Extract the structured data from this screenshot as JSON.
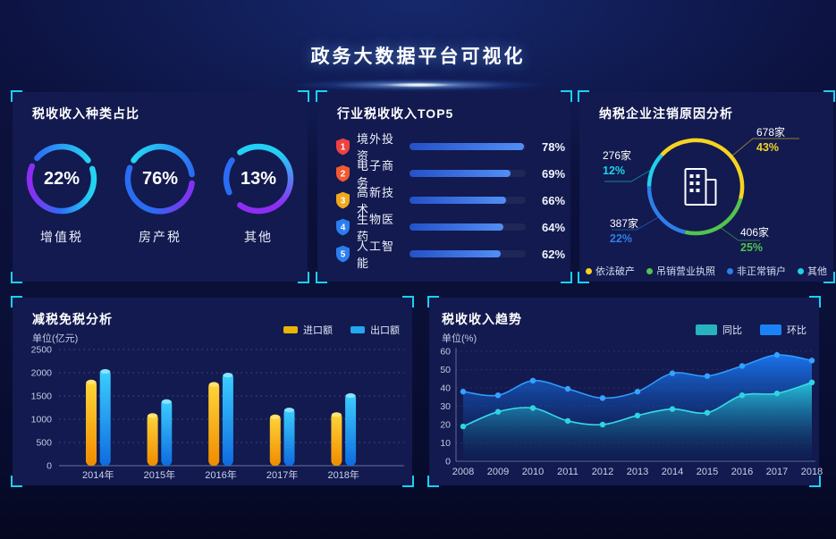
{
  "header": {
    "title": "政务大数据平台可视化"
  },
  "panels": {
    "tax_type": {
      "title": "税收收入种类占比"
    },
    "industry_top5": {
      "title": "行业税收收入TOP5"
    },
    "cancellation": {
      "title": "纳税企业注销原因分析"
    },
    "tax_reduction": {
      "title": "减税免税分析",
      "unit": "单位(亿元)"
    },
    "tax_trend": {
      "title": "税收收入趋势",
      "unit": "单位(%)"
    }
  },
  "colors": {
    "panel_background": "#121a4f",
    "corner_bracket": "#1bd1f2",
    "top5_bar": [
      "#2451c8",
      "#528ef5"
    ]
  },
  "chart_data": [
    {
      "id": "tax_type_rings",
      "type": "pie",
      "title": "税收收入种类占比",
      "items": [
        {
          "label": "增值税",
          "percent": 22,
          "gradient": [
            "#8d2df2",
            "#2e6cf6",
            "#24d3f2"
          ]
        },
        {
          "label": "房产税",
          "percent": 76,
          "gradient": [
            "#8033f2",
            "#2a6cf2",
            "#25d5f3"
          ]
        },
        {
          "label": "其他",
          "percent": 13,
          "gradient": [
            "#8d2df2",
            "#2a6cf5",
            "#22d0f5"
          ]
        }
      ]
    },
    {
      "id": "industry_top5",
      "type": "bar",
      "title": "行业税收收入TOP5",
      "unit": "%",
      "max": 78,
      "rows": [
        {
          "rank": "1",
          "label": "境外投资",
          "value": 78,
          "percent": "78%",
          "badge_color": "#f04141"
        },
        {
          "rank": "2",
          "label": "电子商务",
          "value": 69,
          "percent": "69%",
          "badge_color": "#f2592e"
        },
        {
          "rank": "3",
          "label": "高新技术",
          "value": 66,
          "percent": "66%",
          "badge_color": "#f0a81d"
        },
        {
          "rank": "4",
          "label": "生物医药",
          "value": 64,
          "percent": "64%",
          "badge_color": "#2b7df0"
        },
        {
          "rank": "5",
          "label": "人工智能",
          "value": 62,
          "percent": "62%",
          "badge_color": "#2b7df0"
        }
      ]
    },
    {
      "id": "cancellation_donut",
      "type": "pie",
      "title": "纳税企业注销原因分析",
      "center_icon": "building-icon",
      "slices": [
        {
          "label": "依法破产",
          "count": "678家",
          "percent": "43%",
          "value": 43,
          "color": "#f6d321"
        },
        {
          "label": "吊销营业执照",
          "count": "406家",
          "percent": "25%",
          "value": 25,
          "color": "#53c24e"
        },
        {
          "label": "非正常销户",
          "count": "387家",
          "percent": "22%",
          "value": 22,
          "color": "#2f7ee8"
        },
        {
          "label": "其他",
          "count": "276家",
          "percent": "12%",
          "value": 12,
          "color": "#1fd0e8"
        }
      ],
      "legend_order": [
        "依法破产",
        "吊销营业执照",
        "非正常销户",
        "其他"
      ]
    },
    {
      "id": "tax_reduction_bars",
      "type": "bar",
      "title": "减税免税分析",
      "ylabel": "单位(亿元)",
      "categories": [
        "2014年",
        "2015年",
        "2016年",
        "2017年",
        "2018年"
      ],
      "series": [
        {
          "name": "进口额",
          "values": [
            1850,
            1130,
            1800,
            1100,
            1150
          ],
          "colors": [
            "#ffd63a",
            "#f08c00"
          ],
          "cap": "#ffe47a",
          "legend_color": "#eab308"
        },
        {
          "name": "出口额",
          "values": [
            2080,
            1430,
            2000,
            1250,
            1560
          ],
          "colors": [
            "#3cd0ff",
            "#0f6be0"
          ],
          "cap": "#8fe4ff",
          "legend_color": "#22a7f0"
        }
      ],
      "ylim": [
        0,
        2500
      ],
      "yticks": [
        0,
        500,
        1000,
        1500,
        2000,
        2500
      ],
      "grid": "dotted",
      "legend_position": "top-right"
    },
    {
      "id": "tax_trend_area",
      "type": "area",
      "title": "税收收入趋势",
      "ylabel": "单位(%)",
      "x": [
        "2008",
        "2009",
        "2010",
        "2011",
        "2012",
        "2013",
        "2014",
        "2015",
        "2016",
        "2017",
        "2018"
      ],
      "series": [
        {
          "name": "同比",
          "values": [
            19,
            27,
            29,
            22,
            20,
            25,
            28.5,
            26.5,
            36,
            37,
            43
          ],
          "color": "#2fd4e0",
          "line": "#35dce8",
          "legend_color": "#28b2c0"
        },
        {
          "name": "环比",
          "values": [
            38,
            36,
            44,
            39.5,
            34.5,
            38,
            48,
            46.5,
            52,
            58,
            55
          ],
          "color": "#35a2ff",
          "line": "#2f9bff",
          "legend_color": "#1a82f5"
        }
      ],
      "ylim": [
        0,
        60
      ],
      "yticks": [
        0,
        10,
        20,
        30,
        40,
        50,
        60
      ],
      "grid": "dotted",
      "legend_position": "top-right"
    }
  ]
}
